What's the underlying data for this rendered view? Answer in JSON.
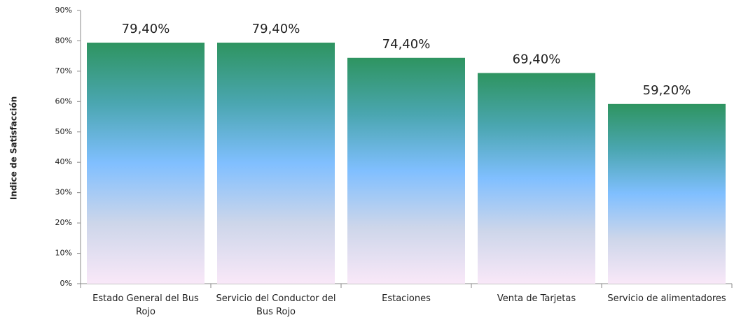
{
  "chart_data": {
    "type": "bar",
    "y_label": "Indice de Satisfacción",
    "categories": [
      "Estado General del Bus Rojo",
      "Servicio del Conductor del Bus Rojo",
      "Estaciones",
      "Venta de Tarjetas",
      "Servicio de alimentadores"
    ],
    "values": [
      79.4,
      79.4,
      74.4,
      69.4,
      59.2
    ],
    "value_labels": [
      "79,40%",
      "79,40%",
      "74,40%",
      "69,40%",
      "59,20%"
    ],
    "gradient_colors": [
      "#2e9460",
      "#4aa6b0",
      "#80bfff",
      "#cdd6ea",
      "#f9e8f8"
    ],
    "ylim": [
      0,
      90
    ],
    "yticks": [
      {
        "value": 0,
        "label": "0%"
      },
      {
        "value": 10,
        "label": "10%"
      },
      {
        "value": 20,
        "label": "20%"
      },
      {
        "value": 30,
        "label": "30%"
      },
      {
        "value": 40,
        "label": "40%"
      },
      {
        "value": 50,
        "label": "50%"
      },
      {
        "value": 60,
        "label": "60%"
      },
      {
        "value": 70,
        "label": "70%"
      },
      {
        "value": 80,
        "label": "80%"
      },
      {
        "value": 90,
        "label": "90%"
      }
    ],
    "grid": false
  }
}
